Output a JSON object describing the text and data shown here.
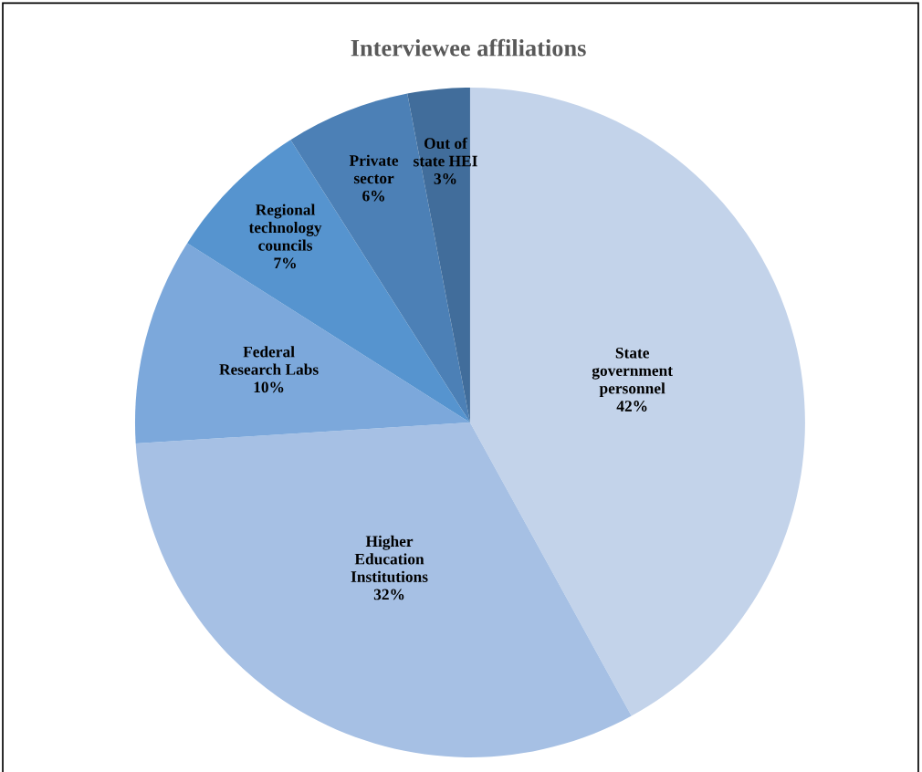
{
  "chart_data": {
    "type": "pie",
    "title": "Interviewee affiliations",
    "categories": [
      "State\ngovernment\npersonnel",
      "Higher\nEducation\nInstitutions",
      "Federal\nResearch Labs",
      "Regional\ntechnology\ncouncils",
      "Private\nsector",
      "Out of\nstate HEI"
    ],
    "values": [
      42,
      32,
      10,
      7,
      6,
      3
    ],
    "colors": [
      "#c3d3ea",
      "#a6c0e4",
      "#7ca8db",
      "#5694cf",
      "#4c80b6",
      "#416d9b"
    ],
    "value_labels": [
      "42%",
      "32%",
      "10%",
      "7%",
      "6%",
      "3%"
    ],
    "legend": false
  }
}
